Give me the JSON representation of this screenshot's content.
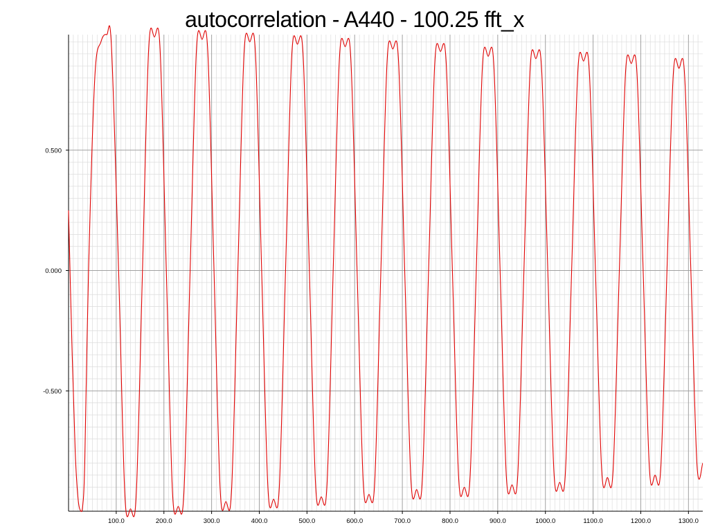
{
  "chart_data": {
    "type": "line",
    "title": "autocorrelation - A440 - 100.25 fft_x",
    "xlabel": "",
    "ylabel": "",
    "xlim": [
      0,
      1330
    ],
    "ylim": [
      -1.0,
      0.98
    ],
    "grid": true,
    "x_ticks": [
      100,
      200,
      300,
      400,
      500,
      600,
      700,
      800,
      900,
      1000,
      1100,
      1200,
      1300
    ],
    "x_tick_labels": [
      "100.0",
      "200.0",
      "300.0",
      "400.0",
      "500.0",
      "600.0",
      "700.0",
      "800.0",
      "900.0",
      "1000.0",
      "1100.0",
      "1200.0",
      "1300.0"
    ],
    "y_ticks": [
      0.5,
      0.0,
      -0.5
    ],
    "y_tick_labels": [
      "0.500",
      "0.000",
      "-0.500"
    ],
    "series": [
      {
        "color": "#e00000",
        "x": [
          0,
          7,
          14,
          20,
          26,
          30,
          34,
          42,
          55,
          68,
          80,
          90,
          105,
          118,
          130,
          142,
          155,
          168,
          180,
          192,
          205,
          218,
          230,
          242,
          255,
          268,
          280,
          292,
          305,
          318,
          330,
          342,
          355,
          368,
          380,
          392,
          405,
          418,
          430,
          442,
          455,
          468,
          480,
          492,
          505,
          518,
          530,
          542,
          555,
          568,
          580,
          592,
          605,
          618,
          630,
          642,
          655,
          668,
          680,
          692,
          705,
          718,
          730,
          742,
          755,
          768,
          780,
          792,
          805,
          818,
          830,
          842,
          855,
          868,
          880,
          892,
          905,
          918,
          930,
          942,
          955,
          968,
          980,
          992,
          1005,
          1018,
          1030,
          1042,
          1055,
          1068,
          1080,
          1092,
          1105,
          1118,
          1130,
          1142,
          1155,
          1168,
          1180,
          1192,
          1205,
          1218,
          1230,
          1242,
          1255,
          1268,
          1280,
          1292,
          1305,
          1318,
          1330
        ],
        "y": [
          0.25,
          -0.3,
          -0.75,
          -0.95,
          -1.0,
          -0.97,
          -0.8,
          0.0,
          0.8,
          0.95,
          0.98,
          0.93,
          0.0,
          -0.93,
          -0.99,
          -0.93,
          0.0,
          0.92,
          0.97,
          0.92,
          0.0,
          -0.92,
          -0.98,
          -0.92,
          0.0,
          0.91,
          0.96,
          0.91,
          0.0,
          -0.91,
          -0.96,
          -0.91,
          0.0,
          0.9,
          0.95,
          0.9,
          0.0,
          -0.9,
          -0.95,
          -0.9,
          0.0,
          0.89,
          0.94,
          0.89,
          0.0,
          -0.89,
          -0.94,
          -0.89,
          0.0,
          0.88,
          0.93,
          0.88,
          0.0,
          -0.88,
          -0.93,
          -0.88,
          0.0,
          0.87,
          0.92,
          0.87,
          0.0,
          -0.87,
          -0.91,
          -0.87,
          0.0,
          0.86,
          0.91,
          0.86,
          0.0,
          -0.86,
          -0.9,
          -0.86,
          0.0,
          0.85,
          0.89,
          0.85,
          0.0,
          -0.85,
          -0.89,
          -0.85,
          0.0,
          0.84,
          0.88,
          0.84,
          0.0,
          -0.84,
          -0.88,
          -0.84,
          0.0,
          0.83,
          0.87,
          0.83,
          0.0,
          -0.83,
          -0.86,
          -0.83,
          0.0,
          0.82,
          0.86,
          0.82,
          0.0,
          -0.82,
          -0.85,
          -0.82,
          0.0,
          0.81,
          0.84,
          0.81,
          0.0,
          -0.81,
          -0.8
        ]
      }
    ]
  }
}
